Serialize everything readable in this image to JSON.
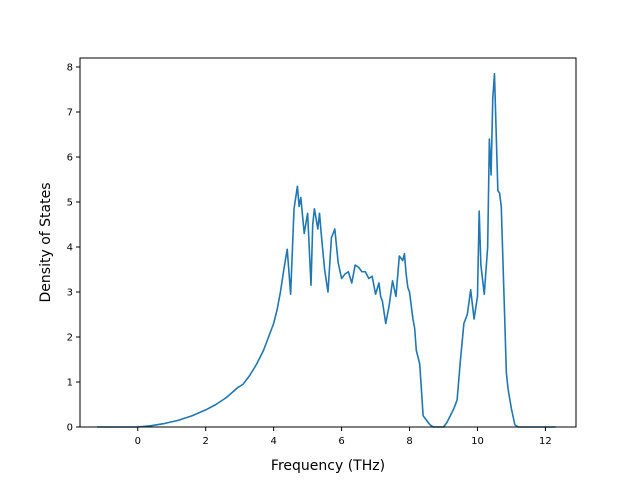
{
  "chart_data": {
    "type": "line",
    "title": "",
    "xlabel": "Frequency (THz)",
    "ylabel": "Density of States",
    "xlim": [
      -1.7,
      12.9
    ],
    "ylim": [
      0,
      8.2
    ],
    "xticks": [
      0,
      2,
      4,
      6,
      8,
      10,
      12
    ],
    "yticks": [
      0,
      1,
      2,
      3,
      4,
      5,
      6,
      7,
      8
    ],
    "xtick_labels": [
      "0",
      "2",
      "4",
      "6",
      "8",
      "10",
      "12"
    ],
    "ytick_labels": [
      "0",
      "1",
      "2",
      "3",
      "4",
      "5",
      "6",
      "7",
      "8"
    ],
    "grid": false,
    "legend": "none",
    "line_color": "#1f77b4",
    "series": [
      {
        "x": [
          -1.2,
          -0.5,
          0.0,
          0.4,
          0.8,
          1.2,
          1.6,
          2.0,
          2.3,
          2.6,
          2.8,
          2.95,
          3.1,
          3.3,
          3.5,
          3.7,
          3.85,
          4.0,
          4.1,
          4.2,
          4.3,
          4.4,
          4.5,
          4.6,
          4.7,
          4.75,
          4.8,
          4.9,
          5.0,
          5.1,
          5.15,
          5.2,
          5.3,
          5.35,
          5.4,
          5.5,
          5.6,
          5.7,
          5.8,
          5.9,
          6.0,
          6.1,
          6.2,
          6.3,
          6.4,
          6.5,
          6.6,
          6.7,
          6.8,
          6.9,
          7.0,
          7.1,
          7.15,
          7.2,
          7.3,
          7.4,
          7.5,
          7.6,
          7.7,
          7.8,
          7.85,
          7.9,
          7.95,
          8.0,
          8.1,
          8.15,
          8.2,
          8.3,
          8.4,
          8.5,
          8.6,
          8.7,
          9.0,
          9.1,
          9.3,
          9.4,
          9.5,
          9.6,
          9.7,
          9.8,
          9.9,
          10.0,
          10.05,
          10.1,
          10.2,
          10.3,
          10.35,
          10.4,
          10.45,
          10.5,
          10.6,
          10.65,
          10.7,
          10.8,
          10.85,
          10.9,
          11.0,
          11.1,
          11.2,
          11.5,
          12.3
        ],
        "y": [
          0,
          0,
          0,
          0.03,
          0.08,
          0.15,
          0.25,
          0.38,
          0.5,
          0.65,
          0.78,
          0.88,
          0.95,
          1.15,
          1.4,
          1.7,
          2.0,
          2.3,
          2.6,
          3.0,
          3.5,
          3.95,
          2.95,
          4.85,
          5.35,
          4.9,
          5.1,
          4.3,
          4.75,
          3.15,
          4.5,
          4.85,
          4.4,
          4.75,
          4.3,
          3.5,
          3.0,
          4.2,
          4.4,
          3.65,
          3.3,
          3.4,
          3.45,
          3.2,
          3.6,
          3.55,
          3.45,
          3.45,
          3.3,
          3.35,
          2.95,
          3.2,
          2.9,
          2.8,
          2.3,
          2.7,
          3.25,
          2.9,
          3.8,
          3.7,
          3.85,
          3.4,
          3.1,
          3.0,
          2.4,
          2.2,
          1.7,
          1.4,
          0.25,
          0.15,
          0.05,
          0,
          0,
          0.1,
          0.4,
          0.6,
          1.5,
          2.3,
          2.5,
          3.05,
          2.4,
          2.9,
          4.8,
          3.6,
          2.95,
          4.0,
          6.4,
          5.6,
          7.3,
          7.85,
          5.25,
          5.2,
          4.9,
          2.45,
          1.2,
          0.85,
          0.4,
          0.05,
          0,
          0,
          0
        ]
      }
    ]
  }
}
